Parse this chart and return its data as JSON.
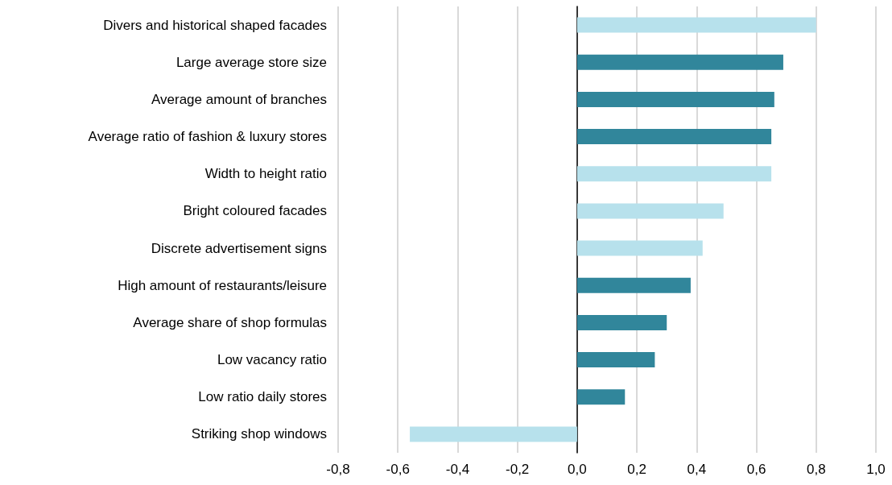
{
  "chart_data": {
    "type": "bar",
    "orientation": "horizontal",
    "categories": [
      "Divers and historical shaped facades",
      "Large average store size",
      "Average amount of branches",
      "Average ratio of fashion & luxury stores",
      "Width to height ratio",
      "Bright coloured facades",
      "Discrete advertisement signs",
      "High amount of restaurants/leisure",
      "Average share of shop formulas",
      "Low vacancy ratio",
      "Low ratio daily stores",
      "Striking shop windows"
    ],
    "values": [
      0.8,
      0.69,
      0.66,
      0.65,
      0.65,
      0.49,
      0.42,
      0.38,
      0.3,
      0.26,
      0.16,
      -0.56
    ],
    "colors": [
      "#b7e1ec",
      "#31869b",
      "#31869b",
      "#31869b",
      "#b7e1ec",
      "#b7e1ec",
      "#b7e1ec",
      "#31869b",
      "#31869b",
      "#31869b",
      "#31869b",
      "#b7e1ec"
    ],
    "xlim": [
      -0.8,
      1.0
    ],
    "xticks": [
      {
        "value": -0.8,
        "label": "-0,8"
      },
      {
        "value": -0.6,
        "label": "-0,6"
      },
      {
        "value": -0.4,
        "label": "-0,4"
      },
      {
        "value": -0.2,
        "label": "-0,2"
      },
      {
        "value": 0,
        "label": "0,0"
      },
      {
        "value": 0.2,
        "label": "0,2"
      },
      {
        "value": 0.4,
        "label": "0,4"
      },
      {
        "value": 0.6,
        "label": "0,6"
      },
      {
        "value": 0.8,
        "label": "0,8"
      },
      {
        "value": 1.0,
        "label": "1,0"
      }
    ],
    "grid": "x"
  }
}
